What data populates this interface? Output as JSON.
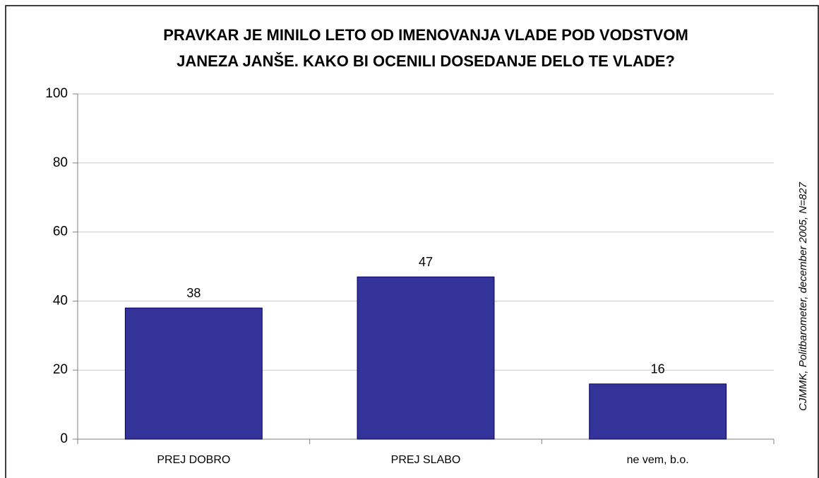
{
  "chart_data": {
    "type": "bar",
    "title": [
      "PRAVKAR JE MINILO LETO OD IMENOVANJA VLADE POD VODSTVOM",
      "JANEZA JANŠE. KAKO BI OCENILI DOSEDANJE DELO TE VLADE?"
    ],
    "source": "CJMMK, Politbarometer, december 2005, N=827",
    "categories": [
      "PREJ DOBRO",
      "PREJ SLABO",
      "ne vem, b.o."
    ],
    "values": [
      38,
      47,
      16
    ],
    "color": "#333399",
    "ylim": [
      0,
      100
    ],
    "yticks": [
      0,
      20,
      40,
      60,
      80,
      100
    ],
    "grid": true
  }
}
